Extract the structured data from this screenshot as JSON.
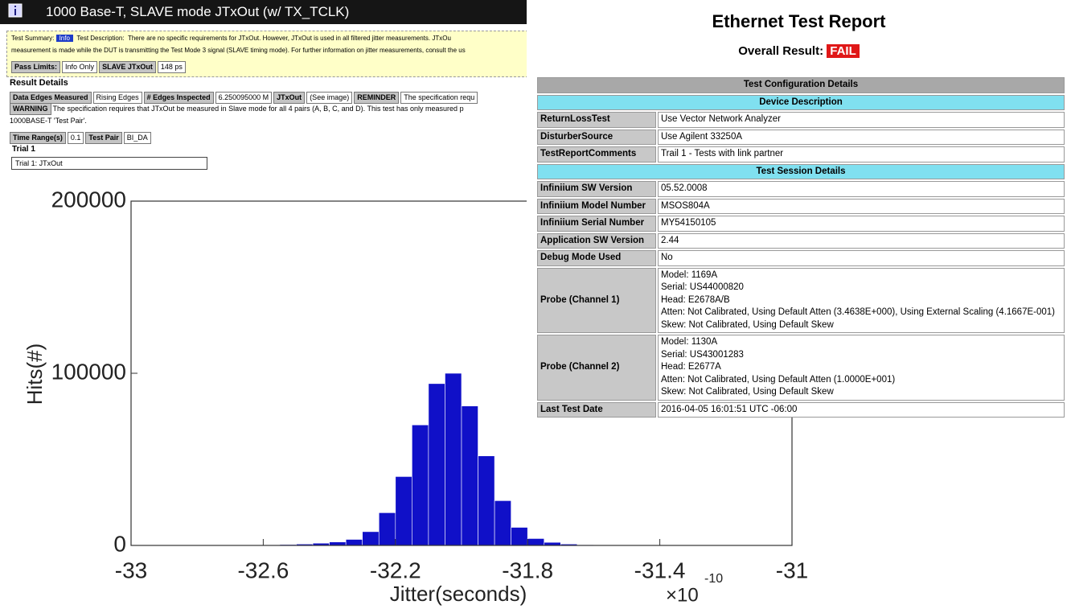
{
  "header": {
    "title": "1000 Base-T, SLAVE mode JTxOut (w/ TX_TCLK)"
  },
  "summary": {
    "label": "Test Summary:",
    "badge": "Info",
    "desc_label": "Test Description:",
    "lines": [
      "There are no specific requirements for JTxOut. However, JTxOut is used in all filtered jitter measurements. JTxOu",
      "measurement is made while the DUT is transmitting the Test Mode 3 signal (SLAVE timing mode). For further information on jitter measurements, consult the us"
    ],
    "pass_limits": [
      {
        "label": "Pass Limits:",
        "value": "Info Only"
      },
      {
        "label": "SLAVE JTxOut",
        "value": "148 ps"
      }
    ]
  },
  "result_details": {
    "title": "Result Details",
    "row1": [
      {
        "label": "Data Edges Measured",
        "value": "Rising Edges"
      },
      {
        "label": "# Edges Inspected",
        "value": "6.250095000 M"
      },
      {
        "label": "JTxOut",
        "value": "(See image)"
      },
      {
        "label": "REMINDER",
        "value": "The specification requ"
      }
    ],
    "warning": {
      "label": "WARNING",
      "value": "The specification requires that JTxOut be measured in Slave mode for all 4 pairs (A, B, C, and D). This test has only measured p"
    },
    "warning_cont": "1000BASE-T 'Test Pair'.",
    "row2": [
      {
        "label": "Time Range(s)",
        "value": "0.1"
      },
      {
        "label": "Test Pair",
        "value": "BI_DA"
      }
    ]
  },
  "trial": {
    "title": "Trial 1",
    "box": "Trial 1: JTxOut"
  },
  "chart_data": {
    "type": "histogram",
    "x_label": "Jitter(seconds)",
    "y_label": "Hits(#)",
    "x_multiplier": "×10",
    "x_exponent": "-10",
    "color": "#1010c8",
    "bins": [
      -32.7,
      -32.65,
      -32.6,
      -32.55,
      -32.5,
      -32.45,
      -32.4,
      -32.35,
      -32.3,
      -32.25,
      -32.2,
      -32.15,
      -32.1,
      -32.05,
      -32.0,
      -31.95,
      -31.9,
      -31.85,
      -31.8,
      -31.75,
      -31.7,
      -31.65,
      -31.6,
      -31.55,
      -31.5,
      -31.45,
      -31.4
    ],
    "values": [
      100,
      200,
      300,
      500,
      800,
      1300,
      2000,
      3500,
      8000,
      19000,
      40000,
      70000,
      94000,
      100000,
      81000,
      52000,
      26000,
      10500,
      4000,
      1800,
      800,
      400,
      200,
      100,
      50,
      20
    ],
    "xlim": [
      -33,
      -31
    ],
    "ylim": [
      0,
      200000
    ],
    "xticks": [
      -33,
      -32.6,
      -32.2,
      -31.8,
      -31.4,
      -31
    ],
    "yticks": [
      0,
      100000,
      200000
    ]
  },
  "report": {
    "title": "Ethernet Test Report",
    "overall_label": "Overall Result:",
    "overall_value": "FAIL",
    "table": {
      "title": "Test Configuration Details",
      "sections": [
        {
          "heading": "Device Description",
          "rows": [
            {
              "key": "ReturnLossTest",
              "value": [
                "Use Vector Network Analyzer"
              ]
            },
            {
              "key": "DisturberSource",
              "value": [
                "Use Agilent 33250A"
              ]
            },
            {
              "key": "TestReportComments",
              "value": [
                "Trail 1 - Tests with link partner"
              ]
            }
          ]
        },
        {
          "heading": "Test Session Details",
          "rows": [
            {
              "key": "Infiniium SW Version",
              "value": [
                "05.52.0008"
              ]
            },
            {
              "key": "Infiniium Model Number",
              "value": [
                "MSOS804A"
              ]
            },
            {
              "key": "Infiniium Serial Number",
              "value": [
                "MY54150105"
              ]
            },
            {
              "key": "Application SW Version",
              "value": [
                "2.44"
              ]
            },
            {
              "key": "Debug Mode Used",
              "value": [
                "No"
              ]
            },
            {
              "key": "Probe (Channel 1)",
              "value": [
                "Model: 1169A",
                "Serial: US44000820",
                "Head: E2678A/B",
                "Atten: Not Calibrated, Using Default Atten (3.4638E+000), Using External Scaling (4.1667E-001)",
                "Skew: Not Calibrated, Using Default Skew"
              ]
            },
            {
              "key": "Probe (Channel 2)",
              "value": [
                "Model: 1130A",
                "Serial: US43001283",
                "Head: E2677A",
                "Atten: Not Calibrated, Using Default Atten (1.0000E+001)",
                "Skew: Not Calibrated, Using Default Skew"
              ]
            },
            {
              "key": "Last Test Date",
              "value": [
                "2016-04-05 16:01:51 UTC -06:00"
              ]
            }
          ]
        }
      ]
    }
  }
}
